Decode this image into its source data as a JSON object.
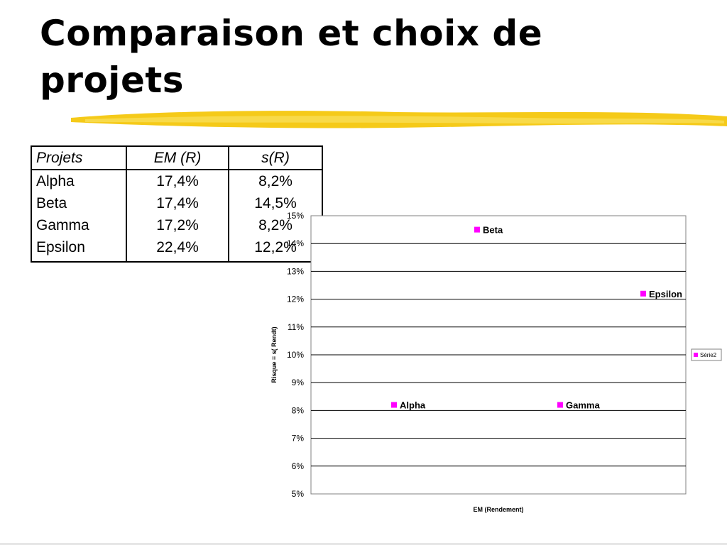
{
  "slide": {
    "title_line1": "Comparaison et choix de",
    "title_line2": "projets",
    "accent_color": "#f2c200"
  },
  "table": {
    "headers": [
      "Projets",
      "EM (R)",
      "s(R)"
    ],
    "rows": [
      [
        "Alpha",
        "17,4%",
        "8,2%"
      ],
      [
        "Beta",
        "17,4%",
        "14,5%"
      ],
      [
        "Gamma",
        "17,2%",
        "8,2%"
      ],
      [
        "Epsilon",
        "22,4%",
        "12,2%"
      ]
    ]
  },
  "chart_data": {
    "type": "scatter",
    "xlabel": "EM (Rendement)",
    "ylabel": "Risque = s( Rendt)",
    "ylim": [
      0.05,
      0.15
    ],
    "yticks": [
      "5%",
      "6%",
      "7%",
      "8%",
      "9%",
      "10%",
      "11%",
      "12%",
      "13%",
      "14%",
      "15%"
    ],
    "series": [
      {
        "name": "Série2",
        "color": "#ff00ff",
        "points": [
          {
            "label": "Alpha",
            "y": 0.082
          },
          {
            "label": "Beta",
            "y": 0.145
          },
          {
            "label": "Gamma",
            "y": 0.082
          },
          {
            "label": "Epsilon",
            "y": 0.122
          }
        ]
      }
    ],
    "grid": true,
    "legend": "right"
  }
}
